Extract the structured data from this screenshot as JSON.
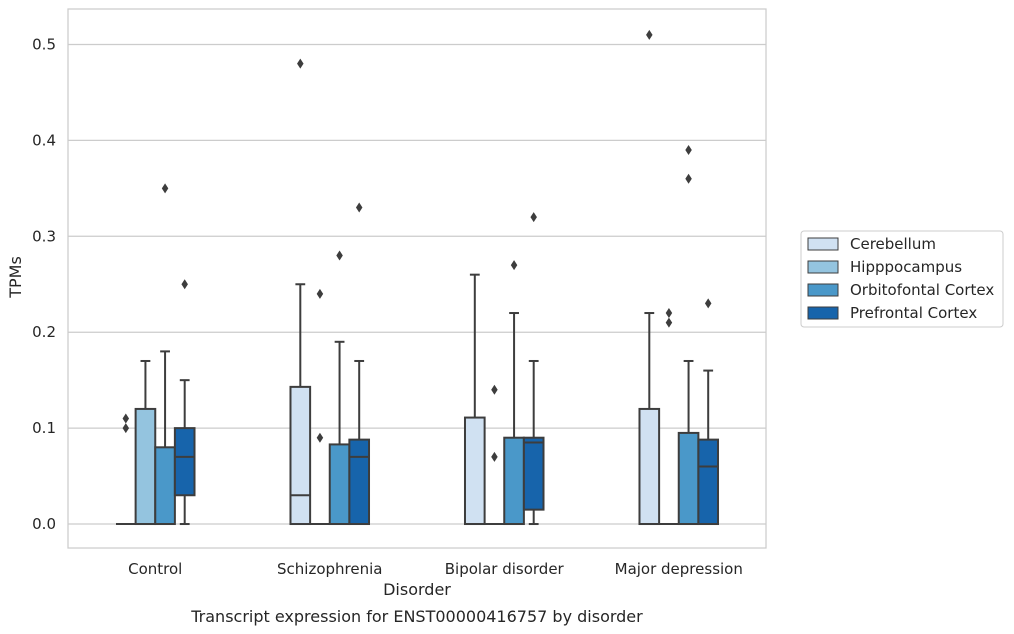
{
  "chart_data": {
    "type": "box",
    "title": "",
    "caption": "Transcript expression for ENST00000416757 by disorder",
    "xlabel": "Disorder",
    "ylabel": "TPMs",
    "ylim": [
      -0.025,
      0.537
    ],
    "yticks": [
      "0.0",
      "0.1",
      "0.2",
      "0.3",
      "0.4",
      "0.5"
    ],
    "grid": "horizontal",
    "legend_position": "right",
    "categories": [
      "Control",
      "Schizophrenia",
      "Bipolar disorder",
      "Major depression"
    ],
    "series": [
      {
        "name": "Cerebellum",
        "color": "#d0e1f2",
        "boxes": [
          {
            "q1": 0.0,
            "median": 0.0,
            "q3": 0.0,
            "whisker_low": 0.0,
            "whisker_high": 0.0,
            "outliers": [
              0.1,
              0.11
            ]
          },
          {
            "q1": 0.0,
            "median": 0.03,
            "q3": 0.143,
            "whisker_low": 0.0,
            "whisker_high": 0.25,
            "outliers": [
              0.48
            ]
          },
          {
            "q1": 0.0,
            "median": 0.0,
            "q3": 0.111,
            "whisker_low": 0.0,
            "whisker_high": 0.26,
            "outliers": []
          },
          {
            "q1": 0.0,
            "median": 0.0,
            "q3": 0.12,
            "whisker_low": 0.0,
            "whisker_high": 0.22,
            "outliers": [
              0.51
            ]
          }
        ]
      },
      {
        "name": "Hipppocampus",
        "color": "#94c4df",
        "boxes": [
          {
            "q1": 0.0,
            "median": 0.0,
            "q3": 0.12,
            "whisker_low": 0.0,
            "whisker_high": 0.17,
            "outliers": []
          },
          {
            "q1": 0.0,
            "median": 0.0,
            "q3": 0.0,
            "whisker_low": 0.0,
            "whisker_high": 0.0,
            "outliers": [
              0.09,
              0.24
            ]
          },
          {
            "q1": 0.0,
            "median": 0.0,
            "q3": 0.0,
            "whisker_low": 0.0,
            "whisker_high": 0.0,
            "outliers": [
              0.07,
              0.14
            ]
          },
          {
            "q1": 0.0,
            "median": 0.0,
            "q3": 0.0,
            "whisker_low": 0.0,
            "whisker_high": 0.0,
            "outliers": [
              0.21,
              0.22
            ]
          }
        ]
      },
      {
        "name": "Orbitofontal Cortex",
        "color": "#4a98c9",
        "boxes": [
          {
            "q1": 0.0,
            "median": 0.0,
            "q3": 0.08,
            "whisker_low": 0.0,
            "whisker_high": 0.18,
            "outliers": [
              0.35
            ]
          },
          {
            "q1": 0.0,
            "median": 0.0,
            "q3": 0.083,
            "whisker_low": 0.0,
            "whisker_high": 0.19,
            "outliers": [
              0.28
            ]
          },
          {
            "q1": 0.0,
            "median": 0.0,
            "q3": 0.09,
            "whisker_low": 0.0,
            "whisker_high": 0.22,
            "outliers": [
              0.27
            ]
          },
          {
            "q1": 0.0,
            "median": 0.0,
            "q3": 0.095,
            "whisker_low": 0.0,
            "whisker_high": 0.17,
            "outliers": [
              0.36,
              0.39
            ]
          }
        ]
      },
      {
        "name": "Prefrontal Cortex",
        "color": "#1764ab",
        "boxes": [
          {
            "q1": 0.03,
            "median": 0.07,
            "q3": 0.1,
            "whisker_low": 0.0,
            "whisker_high": 0.15,
            "outliers": [
              0.25
            ]
          },
          {
            "q1": 0.0,
            "median": 0.07,
            "q3": 0.088,
            "whisker_low": 0.0,
            "whisker_high": 0.17,
            "outliers": [
              0.33
            ]
          },
          {
            "q1": 0.015,
            "median": 0.085,
            "q3": 0.09,
            "whisker_low": 0.0,
            "whisker_high": 0.17,
            "outliers": [
              0.32
            ]
          },
          {
            "q1": 0.0,
            "median": 0.06,
            "q3": 0.088,
            "whisker_low": 0.0,
            "whisker_high": 0.16,
            "outliers": [
              0.23
            ]
          }
        ]
      }
    ]
  }
}
